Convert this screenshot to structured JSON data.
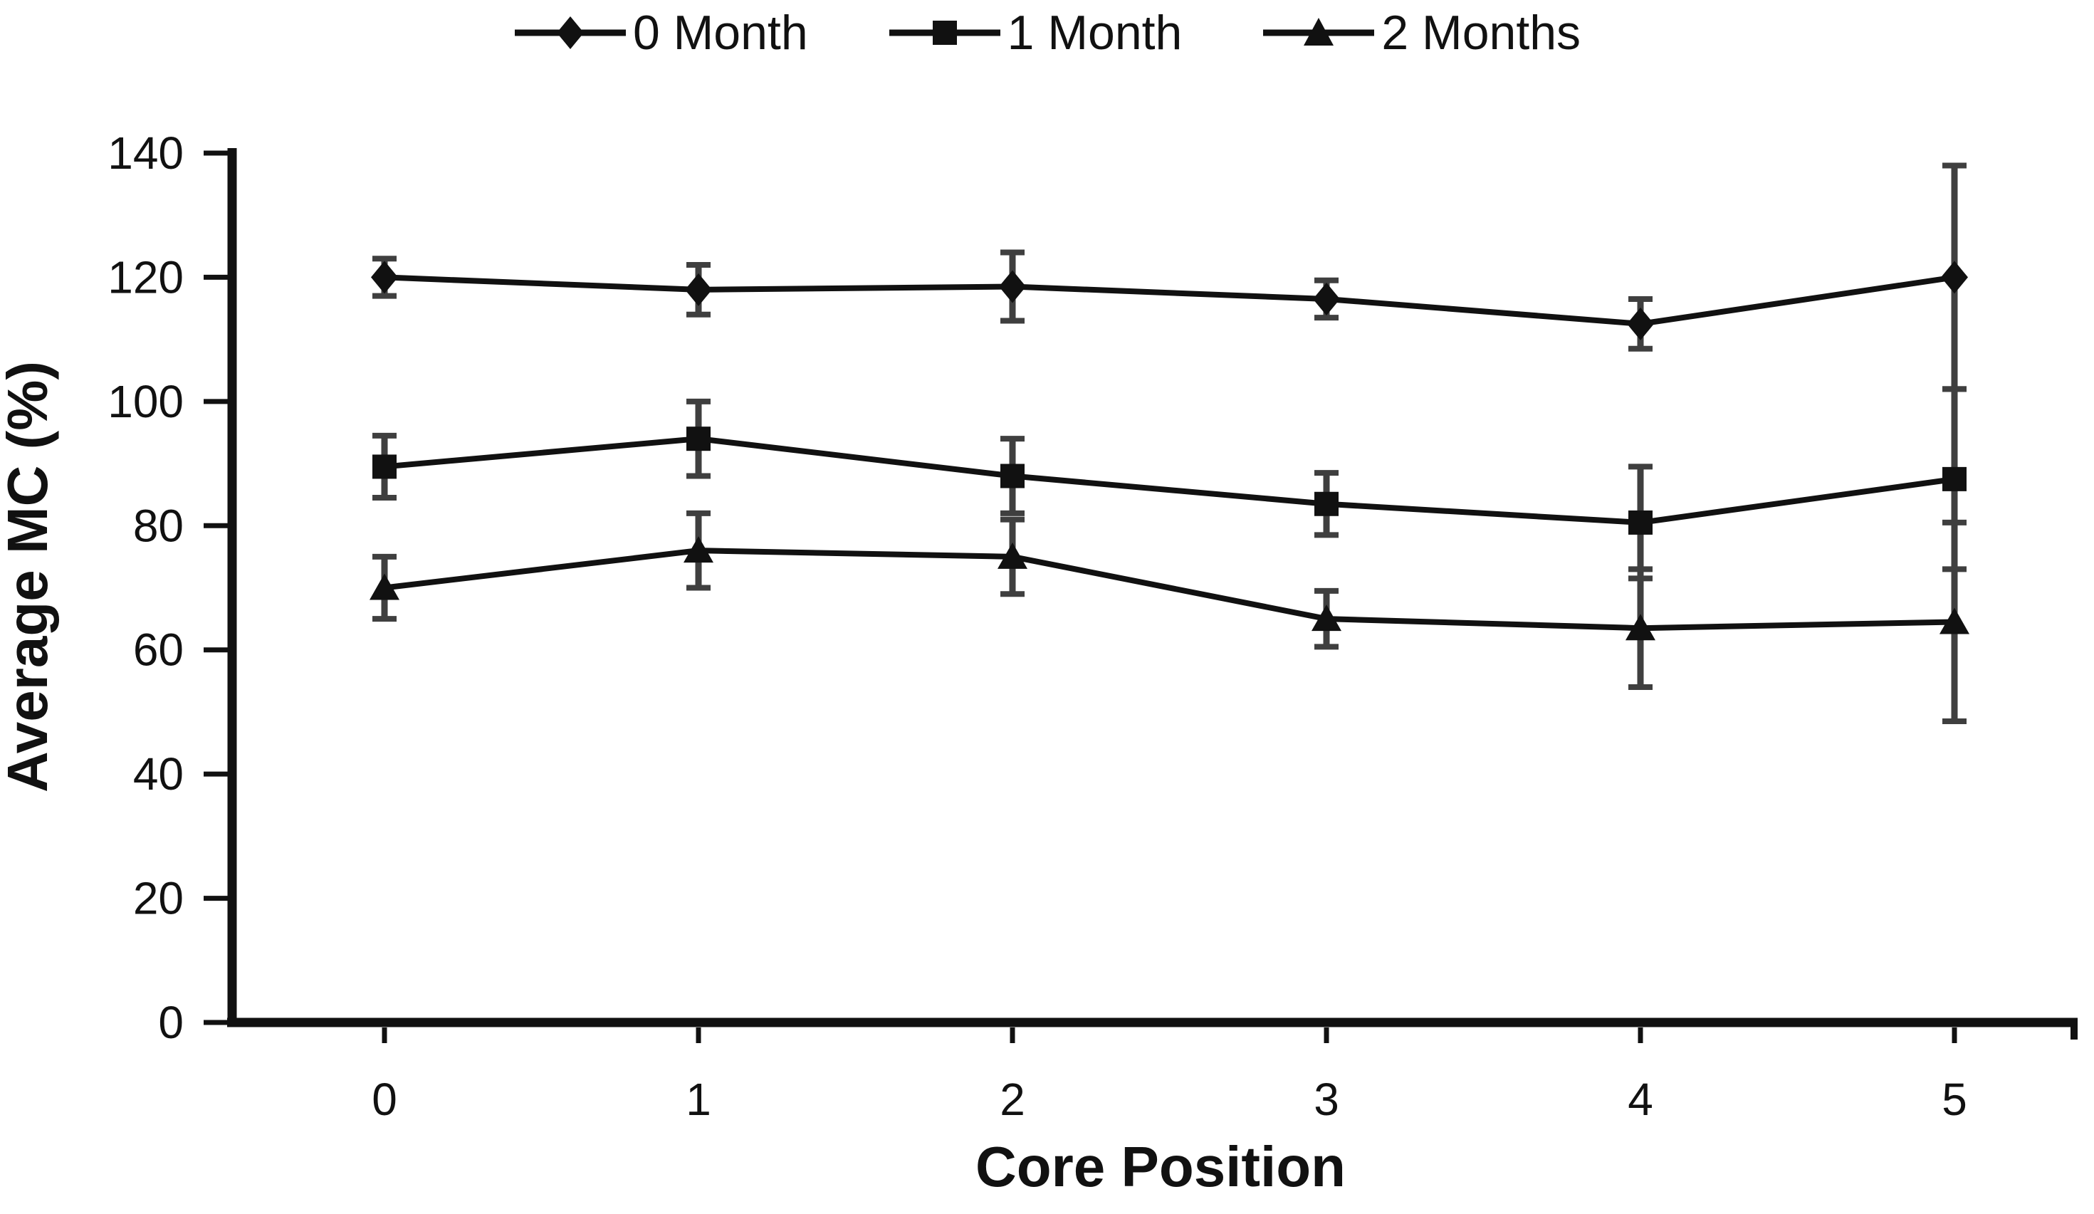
{
  "chart_data": {
    "type": "line",
    "title": "",
    "xlabel": "Core Position",
    "ylabel": "Average MC (%)",
    "x_tick_labels": [
      "0",
      "1",
      "2",
      "3",
      "4",
      "5"
    ],
    "y_ticks": [
      0,
      20,
      40,
      60,
      80,
      100,
      120,
      140
    ],
    "ylim": [
      0,
      140
    ],
    "grid": false,
    "legend_position": "top-center",
    "error_bars": true,
    "colors": {
      "series": "#111111",
      "error_bar": "#3f3f3f",
      "text": "#111111",
      "background": "#ffffff"
    },
    "series": [
      {
        "name": "0 Month",
        "marker": "diamond",
        "values": [
          120,
          118,
          118.5,
          116.5,
          112.5,
          120
        ],
        "errors": [
          3,
          4,
          5.5,
          3,
          4,
          18
        ]
      },
      {
        "name": "1 Month",
        "marker": "square",
        "values": [
          89.5,
          94,
          88,
          83.5,
          80.5,
          87.5
        ],
        "errors": [
          5,
          6,
          6,
          5,
          9,
          14.5
        ]
      },
      {
        "name": "2 Months",
        "marker": "triangle",
        "values": [
          70,
          76,
          75,
          65,
          63.5,
          64.5
        ],
        "errors": [
          5,
          6,
          6,
          4.5,
          9.5,
          16
        ]
      }
    ]
  }
}
